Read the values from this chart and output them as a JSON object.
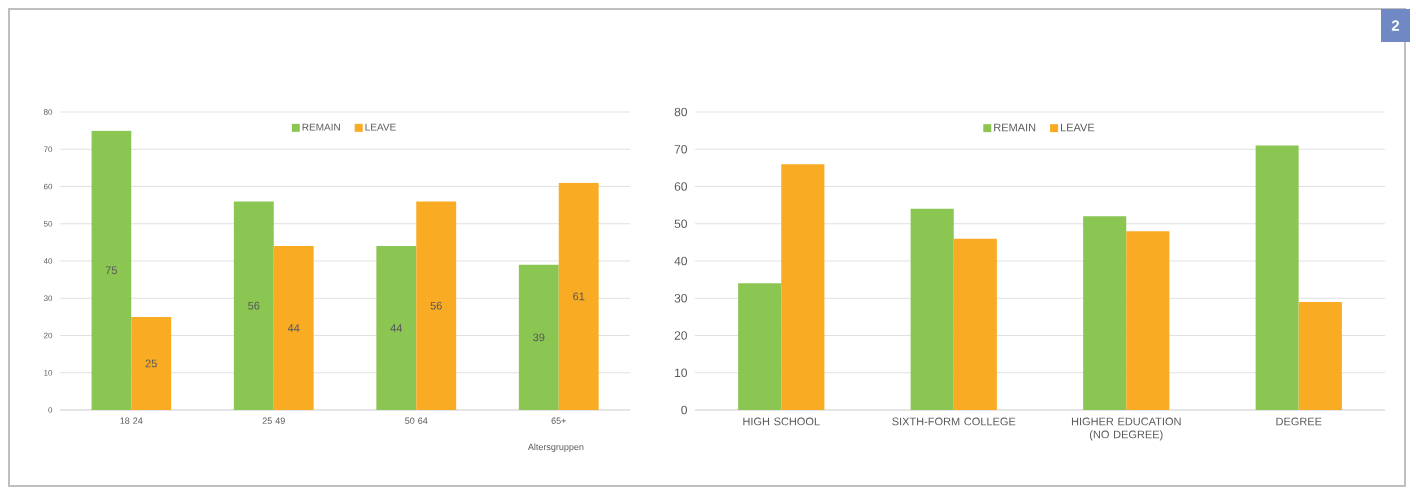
{
  "chart_data": [
    {
      "type": "bar",
      "categories": [
        "18 24",
        "25 49",
        "50 64",
        "65+"
      ],
      "xlabel": "Altersgruppen",
      "series": [
        {
          "name": "REMAIN",
          "color": "#8bc653",
          "values": [
            75,
            56,
            44,
            39
          ]
        },
        {
          "name": "LEAVE",
          "color": "#f9ab23",
          "values": [
            25,
            44,
            56,
            61
          ]
        }
      ],
      "ylim": [
        0,
        80
      ],
      "yticks": [
        0,
        10,
        20,
        30,
        40,
        50,
        60,
        70,
        80
      ],
      "grid": "y",
      "legend": "top",
      "data_labels": true
    },
    {
      "type": "bar",
      "categories": [
        "HIGH SCHOOL",
        "SIXTH-FORM COLLEGE",
        "HIGHER EDUCATION (NO DEGREE)",
        "DEGREE"
      ],
      "series": [
        {
          "name": "REMAIN",
          "color": "#8bc653",
          "values": [
            34,
            54,
            52,
            71
          ]
        },
        {
          "name": "LEAVE",
          "color": "#f9ab23",
          "values": [
            66,
            46,
            48,
            29
          ]
        }
      ],
      "ylim": [
        0,
        80
      ],
      "yticks": [
        0,
        10,
        20,
        30,
        40,
        50,
        60,
        70,
        80
      ],
      "grid": "y",
      "legend": "top",
      "annotations": [
        "2"
      ]
    }
  ]
}
